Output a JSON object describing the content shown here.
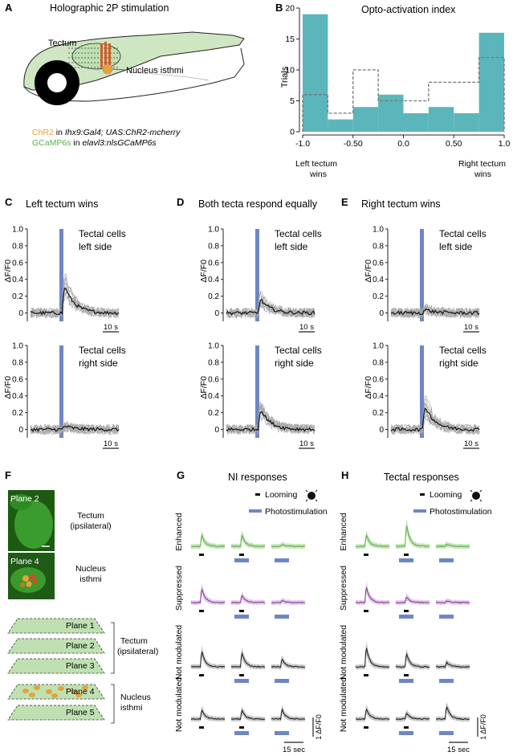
{
  "colors": {
    "teal": "#5bb6bc",
    "blue": "#6d86c6",
    "green": "#59b24a",
    "green_light": "#bfe1b2",
    "purple": "#8a3c9c",
    "purple_light": "#dcc4e3",
    "orange": "#e8a23a",
    "trace_gray": "#9a9a9a",
    "dark": "#222222",
    "zebrafish": "#cfe6c3",
    "eye": "#000000"
  },
  "panelA": {
    "letter": "A",
    "title": "Holographic 2P stimulation",
    "tectum_label": "Tectum",
    "ni_label": "Nucleus isthmi",
    "legend_line1": {
      "a": "ChR2",
      "b": " in ",
      "c": "Ihx9:Gal4; UAS:ChR2-mcherry"
    },
    "legend_line2": {
      "a": "GCaMP6s",
      "b": " in ",
      "c": "elavl3:nlsGCaMP6s"
    }
  },
  "panelB": {
    "letter": "B",
    "chart_data": {
      "type": "bar",
      "title": "Opto-activation index",
      "ylabel": "Trials",
      "xlim": [
        -1.0,
        1.0
      ],
      "ylim": [
        0,
        20
      ],
      "xticks": [
        "-1.0",
        "-0.50",
        "0.0",
        "0.50",
        "1.0"
      ],
      "yticks": [
        "0",
        "5",
        "10",
        "15",
        "20"
      ],
      "bin_edges": [
        -1.0,
        -0.75,
        -0.5,
        -0.25,
        0.0,
        0.25,
        0.5,
        0.75,
        1.0
      ],
      "series": [
        {
          "values": [
            19,
            2,
            4,
            6,
            3,
            4,
            3,
            16
          ]
        },
        {
          "values": [
            6,
            3,
            10,
            5,
            5,
            8,
            8,
            12
          ]
        }
      ],
      "annot_left_1": "Left tectum",
      "annot_left_2": "wins",
      "annot_right_1": "Right tectum",
      "annot_right_2": "wins"
    }
  },
  "trace_panels": {
    "ylabel": "ΔF/F0",
    "yticks": [
      "0",
      "0.2",
      "0.4",
      "0.6",
      "0.8",
      "1.0"
    ],
    "scalebar": "10 s",
    "label_line1": "Tectal cells",
    "left_side": "left side",
    "right_side": "right side",
    "C": {
      "letter": "C",
      "title": "Left tectum wins",
      "top_peak": 0.4,
      "bottom_peak": 0.05
    },
    "D": {
      "letter": "D",
      "title": "Both tecta respond equally",
      "top_peak": 0.2,
      "bottom_peak": 0.3
    },
    "E": {
      "letter": "E",
      "title": "Right tectum wins",
      "top_peak": 0.05,
      "bottom_peak": 0.35
    }
  },
  "panelF": {
    "letter": "F",
    "plane2": "Plane 2",
    "plane4": "Plane 4",
    "tectum_1": "Tectum",
    "tectum_2": "(ipsilateral)",
    "ni_1": "Nucleus",
    "ni_2": "isthmi",
    "planes": [
      "Plane 1",
      "Plane 2",
      "Plane 3",
      "Plane 4",
      "Plane 5"
    ]
  },
  "responses": {
    "looming": "Looming",
    "photostim": "Photostimulation",
    "rows": [
      "Enhanced",
      "Suppressed",
      "Not modulated",
      "Not modulated"
    ],
    "scale_x": "15 sec",
    "scale_y": "1 ΔF/F0",
    "G": {
      "letter": "G",
      "title": "NI responses",
      "peaks": [
        [
          0.85,
          0.9,
          0.15
        ],
        [
          1.1,
          0.55,
          0.15
        ],
        [
          1.2,
          1.1,
          0.6
        ],
        [
          0.7,
          0.7,
          0.75
        ]
      ]
    },
    "H": {
      "letter": "H",
      "title": "Tectal responses",
      "peaks": [
        [
          0.9,
          1.65,
          0.15
        ],
        [
          1.2,
          0.45,
          0.15
        ],
        [
          1.5,
          1.0,
          0.35
        ],
        [
          0.8,
          0.5,
          1.0
        ]
      ]
    }
  }
}
